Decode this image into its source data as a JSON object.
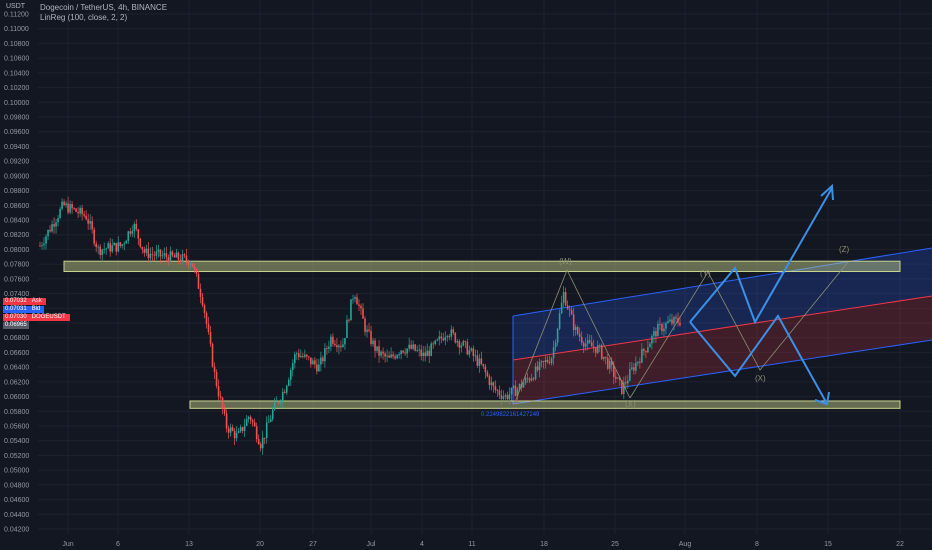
{
  "header": {
    "symbol_line": "Dogecoin / TetherUS, 4h, BINANCE",
    "indicator_line": "LinReg (100, close, 2, 2)",
    "currency": "USDT"
  },
  "price_badges": [
    {
      "value": "0.07032",
      "tag": "Ask",
      "color": "#f23645"
    },
    {
      "value": "0.07031",
      "tag": "Bid",
      "color": "#2962ff"
    },
    {
      "value": "0.07030",
      "tag": "DOGEUSDT",
      "color": "#f23645"
    },
    {
      "value": "0.06965",
      "tag": "",
      "color": "#555a66"
    }
  ],
  "chart_data": {
    "type": "candlestick",
    "title": "Dogecoin / TetherUS, 4h, BINANCE",
    "ylabel": "USDT",
    "y_ticks": [
      "0.11200",
      "0.11000",
      "0.10800",
      "0.10600",
      "0.10400",
      "0.10200",
      "0.10000",
      "0.09800",
      "0.09600",
      "0.09400",
      "0.09200",
      "0.09000",
      "0.08800",
      "0.08600",
      "0.08400",
      "0.08200",
      "0.08000",
      "0.07800",
      "0.07600",
      "0.07400",
      "0.07200",
      "0.07000",
      "0.06800",
      "0.06600",
      "0.06400",
      "0.06200",
      "0.06000",
      "0.05800",
      "0.05600",
      "0.05400",
      "0.05200",
      "0.05000",
      "0.04800",
      "0.04600",
      "0.04400",
      "0.04200"
    ],
    "x_ticks": [
      "Jun",
      "6",
      "13",
      "20",
      "27",
      "Jul",
      "4",
      "11",
      "18",
      "25",
      "Aug",
      "8",
      "15",
      "22"
    ],
    "close_series": [
      {
        "t": 0,
        "v": 0.0805
      },
      {
        "t": 2,
        "v": 0.086
      },
      {
        "t": 4,
        "v": 0.0845
      },
      {
        "t": 5,
        "v": 0.08
      },
      {
        "t": 7,
        "v": 0.0805
      },
      {
        "t": 8,
        "v": 0.0835
      },
      {
        "t": 9,
        "v": 0.0795
      },
      {
        "t": 11,
        "v": 0.079
      },
      {
        "t": 13,
        "v": 0.0785
      },
      {
        "t": 14,
        "v": 0.073
      },
      {
        "t": 15,
        "v": 0.063
      },
      {
        "t": 16,
        "v": 0.056
      },
      {
        "t": 17,
        "v": 0.0545
      },
      {
        "t": 18,
        "v": 0.0575
      },
      {
        "t": 19,
        "v": 0.0535
      },
      {
        "t": 20,
        "v": 0.058
      },
      {
        "t": 21,
        "v": 0.061
      },
      {
        "t": 22,
        "v": 0.066
      },
      {
        "t": 24,
        "v": 0.064
      },
      {
        "t": 25,
        "v": 0.068
      },
      {
        "t": 26,
        "v": 0.067
      },
      {
        "t": 27,
        "v": 0.0745
      },
      {
        "t": 28,
        "v": 0.069
      },
      {
        "t": 29,
        "v": 0.066
      },
      {
        "t": 30,
        "v": 0.065
      },
      {
        "t": 31,
        "v": 0.0665
      },
      {
        "t": 32,
        "v": 0.0665
      },
      {
        "t": 33,
        "v": 0.0655
      },
      {
        "t": 34,
        "v": 0.067
      },
      {
        "t": 35,
        "v": 0.069
      },
      {
        "t": 36,
        "v": 0.0675
      },
      {
        "t": 37,
        "v": 0.066
      },
      {
        "t": 38,
        "v": 0.064
      },
      {
        "t": 39,
        "v": 0.061
      },
      {
        "t": 40,
        "v": 0.06
      },
      {
        "t": 41,
        "v": 0.061
      },
      {
        "t": 42,
        "v": 0.0625
      },
      {
        "t": 43,
        "v": 0.064
      },
      {
        "t": 44,
        "v": 0.0655
      },
      {
        "t": 45,
        "v": 0.074
      },
      {
        "t": 46,
        "v": 0.069
      },
      {
        "t": 47,
        "v": 0.067
      },
      {
        "t": 48,
        "v": 0.0665
      },
      {
        "t": 49,
        "v": 0.064
      },
      {
        "t": 50,
        "v": 0.061
      },
      {
        "t": 51,
        "v": 0.064
      },
      {
        "t": 52,
        "v": 0.0665
      },
      {
        "t": 53,
        "v": 0.069
      },
      {
        "t": 54,
        "v": 0.07
      },
      {
        "t": 55,
        "v": 0.0703
      }
    ],
    "zones": [
      {
        "name": "resistance",
        "from": 0.0784,
        "to": 0.077,
        "color": "#c8d48c"
      },
      {
        "name": "support",
        "from": 0.0594,
        "to": 0.0584,
        "color": "#c8d48c"
      }
    ],
    "wave_labels": [
      "(W)",
      "(X)",
      "(Y)",
      "(X)",
      "(Z)"
    ],
    "channel_label": "0.2249822161427249"
  }
}
